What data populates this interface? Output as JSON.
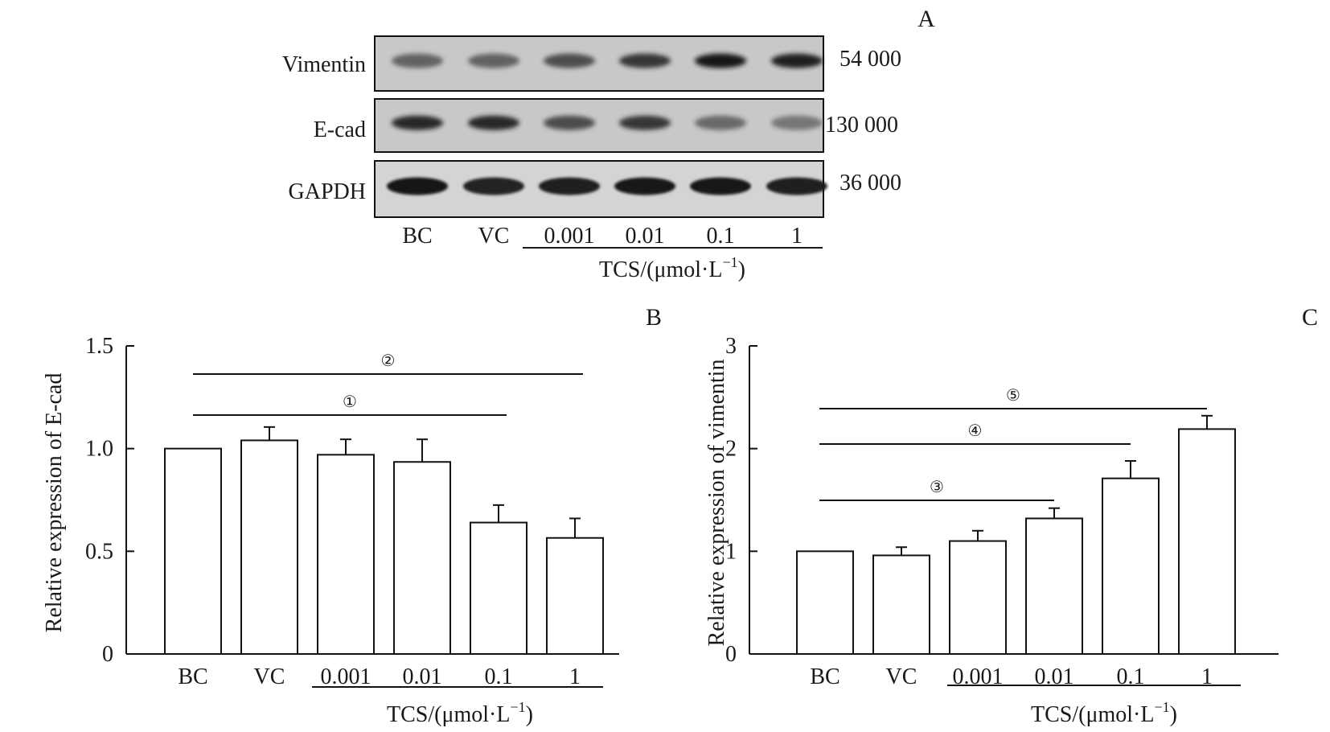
{
  "panel_a": {
    "label": "A",
    "rows": [
      {
        "name": "Vimentin",
        "mw": "54 000",
        "intensity": [
          0.55,
          0.55,
          0.68,
          0.82,
          1.0,
          0.95
        ]
      },
      {
        "name": "E-cad",
        "mw": "130 000",
        "intensity": [
          0.9,
          0.9,
          0.7,
          0.82,
          0.5,
          0.42
        ]
      },
      {
        "name": "GAPDH",
        "mw": "36 000",
        "intensity": [
          1.0,
          0.92,
          0.95,
          0.97,
          0.97,
          0.95
        ]
      }
    ],
    "lanes": [
      "BC",
      "VC",
      "0.001",
      "0.01",
      "0.1",
      "1"
    ],
    "group_label_main": "TCS/(μmol·L",
    "group_label_sup": "−1",
    "group_label_end": ")"
  },
  "chart_data": [
    {
      "type": "bar",
      "panel": "B",
      "categories": [
        "BC",
        "VC",
        "0.001",
        "0.01",
        "0.1",
        "1"
      ],
      "values": [
        1.0,
        1.04,
        0.97,
        0.935,
        0.64,
        0.565
      ],
      "errors": [
        0,
        0.065,
        0.075,
        0.11,
        0.085,
        0.095
      ],
      "ylabel": "Relative expression of E-cad",
      "ylim": [
        0,
        1.5
      ],
      "yticks": [
        "0",
        "0.5",
        "1.0",
        "1.5"
      ],
      "group_label_main": "TCS/(μmol·L",
      "group_label_sup": "−1",
      "group_label_end": ")",
      "significance": [
        {
          "label": "①",
          "from": "BC",
          "to": "0.1"
        },
        {
          "label": "②",
          "from": "BC",
          "to": "1"
        }
      ]
    },
    {
      "type": "bar",
      "panel": "C",
      "categories": [
        "BC",
        "VC",
        "0.001",
        "0.01",
        "0.1",
        "1"
      ],
      "values": [
        1.0,
        0.96,
        1.1,
        1.32,
        1.71,
        2.19
      ],
      "errors": [
        0,
        0.08,
        0.1,
        0.1,
        0.17,
        0.13
      ],
      "ylabel": "Relative expression of vimentin",
      "ylim": [
        0,
        3
      ],
      "yticks": [
        "0",
        "1",
        "2",
        "3"
      ],
      "group_label_main": "TCS/(μmol·L",
      "group_label_sup": "−1",
      "group_label_end": ")",
      "significance": [
        {
          "label": "③",
          "from": "BC",
          "to": "0.01"
        },
        {
          "label": "④",
          "from": "BC",
          "to": "0.1"
        },
        {
          "label": "⑤",
          "from": "BC",
          "to": "1"
        }
      ]
    }
  ]
}
